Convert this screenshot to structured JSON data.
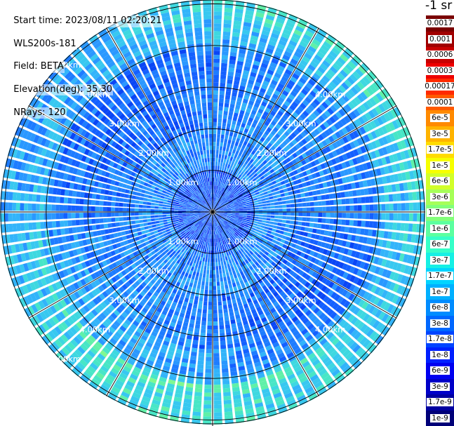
{
  "header": {
    "start_time": "Start time: 2023/08/11 02:20:21",
    "instrument": "WLS200s-181",
    "field": "Field: BETA",
    "elevation": "Elevation(deg): 35.30",
    "nrays": "NRays: 120"
  },
  "colorbar": {
    "unit_label": "-1 sr",
    "levels": [
      {
        "label": "0.0017",
        "color": "#7a0000",
        "text": "#ffffff"
      },
      {
        "label": "0.001",
        "color": "#a00000",
        "text": "#ffffff"
      },
      {
        "label": "0.0006",
        "color": "#c80000",
        "text": "#ffffff"
      },
      {
        "label": "0.0003",
        "color": "#ee0000",
        "text": "#ffffff"
      },
      {
        "label": "0.00017",
        "color": "#ff2a00",
        "text": "#ffffff"
      },
      {
        "label": "0.0001",
        "color": "#ff5a00",
        "text": "#ffffff"
      },
      {
        "label": "6e-5",
        "color": "#ff8a00",
        "text": "#000000"
      },
      {
        "label": "3e-5",
        "color": "#ffb400",
        "text": "#000000"
      },
      {
        "label": "1.7e-5",
        "color": "#ffdc00",
        "text": "#000000"
      },
      {
        "label": "1e-5",
        "color": "#f6ff00",
        "text": "#000000"
      },
      {
        "label": "6e-6",
        "color": "#d2ff2a",
        "text": "#000000"
      },
      {
        "label": "3e-6",
        "color": "#a6ff58",
        "text": "#000000"
      },
      {
        "label": "1.7e-6",
        "color": "#82ff7a",
        "text": "#000000"
      },
      {
        "label": "1e-6",
        "color": "#5cffa0",
        "text": "#000000"
      },
      {
        "label": "6e-7",
        "color": "#36ffc8",
        "text": "#000000"
      },
      {
        "label": "3e-7",
        "color": "#16f0e4",
        "text": "#000000"
      },
      {
        "label": "1.7e-7",
        "color": "#00d4ff",
        "text": "#000000"
      },
      {
        "label": "1e-7",
        "color": "#00b0ff",
        "text": "#000000"
      },
      {
        "label": "6e-8",
        "color": "#008cff",
        "text": "#000000"
      },
      {
        "label": "3e-8",
        "color": "#0068ff",
        "text": "#000000"
      },
      {
        "label": "1.7e-8",
        "color": "#0044ff",
        "text": "#000000"
      },
      {
        "label": "1e-8",
        "color": "#0020ff",
        "text": "#ffffff"
      },
      {
        "label": "6e-9",
        "color": "#0000f0",
        "text": "#ffffff"
      },
      {
        "label": "3e-9",
        "color": "#0000c8",
        "text": "#ffffff"
      },
      {
        "label": "1.7e-9",
        "color": "#0000a0",
        "text": "#ffffff"
      },
      {
        "label": "1e-9",
        "color": "#000078",
        "text": "#ffffff"
      }
    ]
  },
  "chart_data": {
    "type": "heatmap",
    "projection": "polar",
    "field": "BETA",
    "elevation_deg": 35.3,
    "n_rays": 120,
    "scale": "log",
    "range_rings_km": [
      1,
      2,
      3,
      4,
      5
    ],
    "ring_label_text": [
      "1.00km",
      "2.00km",
      "3.00km",
      "4.00km",
      "5.00km"
    ],
    "azimuth_lines_deg": [
      0,
      30,
      60,
      90,
      120,
      150,
      180,
      210,
      240,
      270,
      300,
      330
    ],
    "dominant_value_range": [
      "1e-9",
      "1e-6"
    ],
    "grid": true
  }
}
